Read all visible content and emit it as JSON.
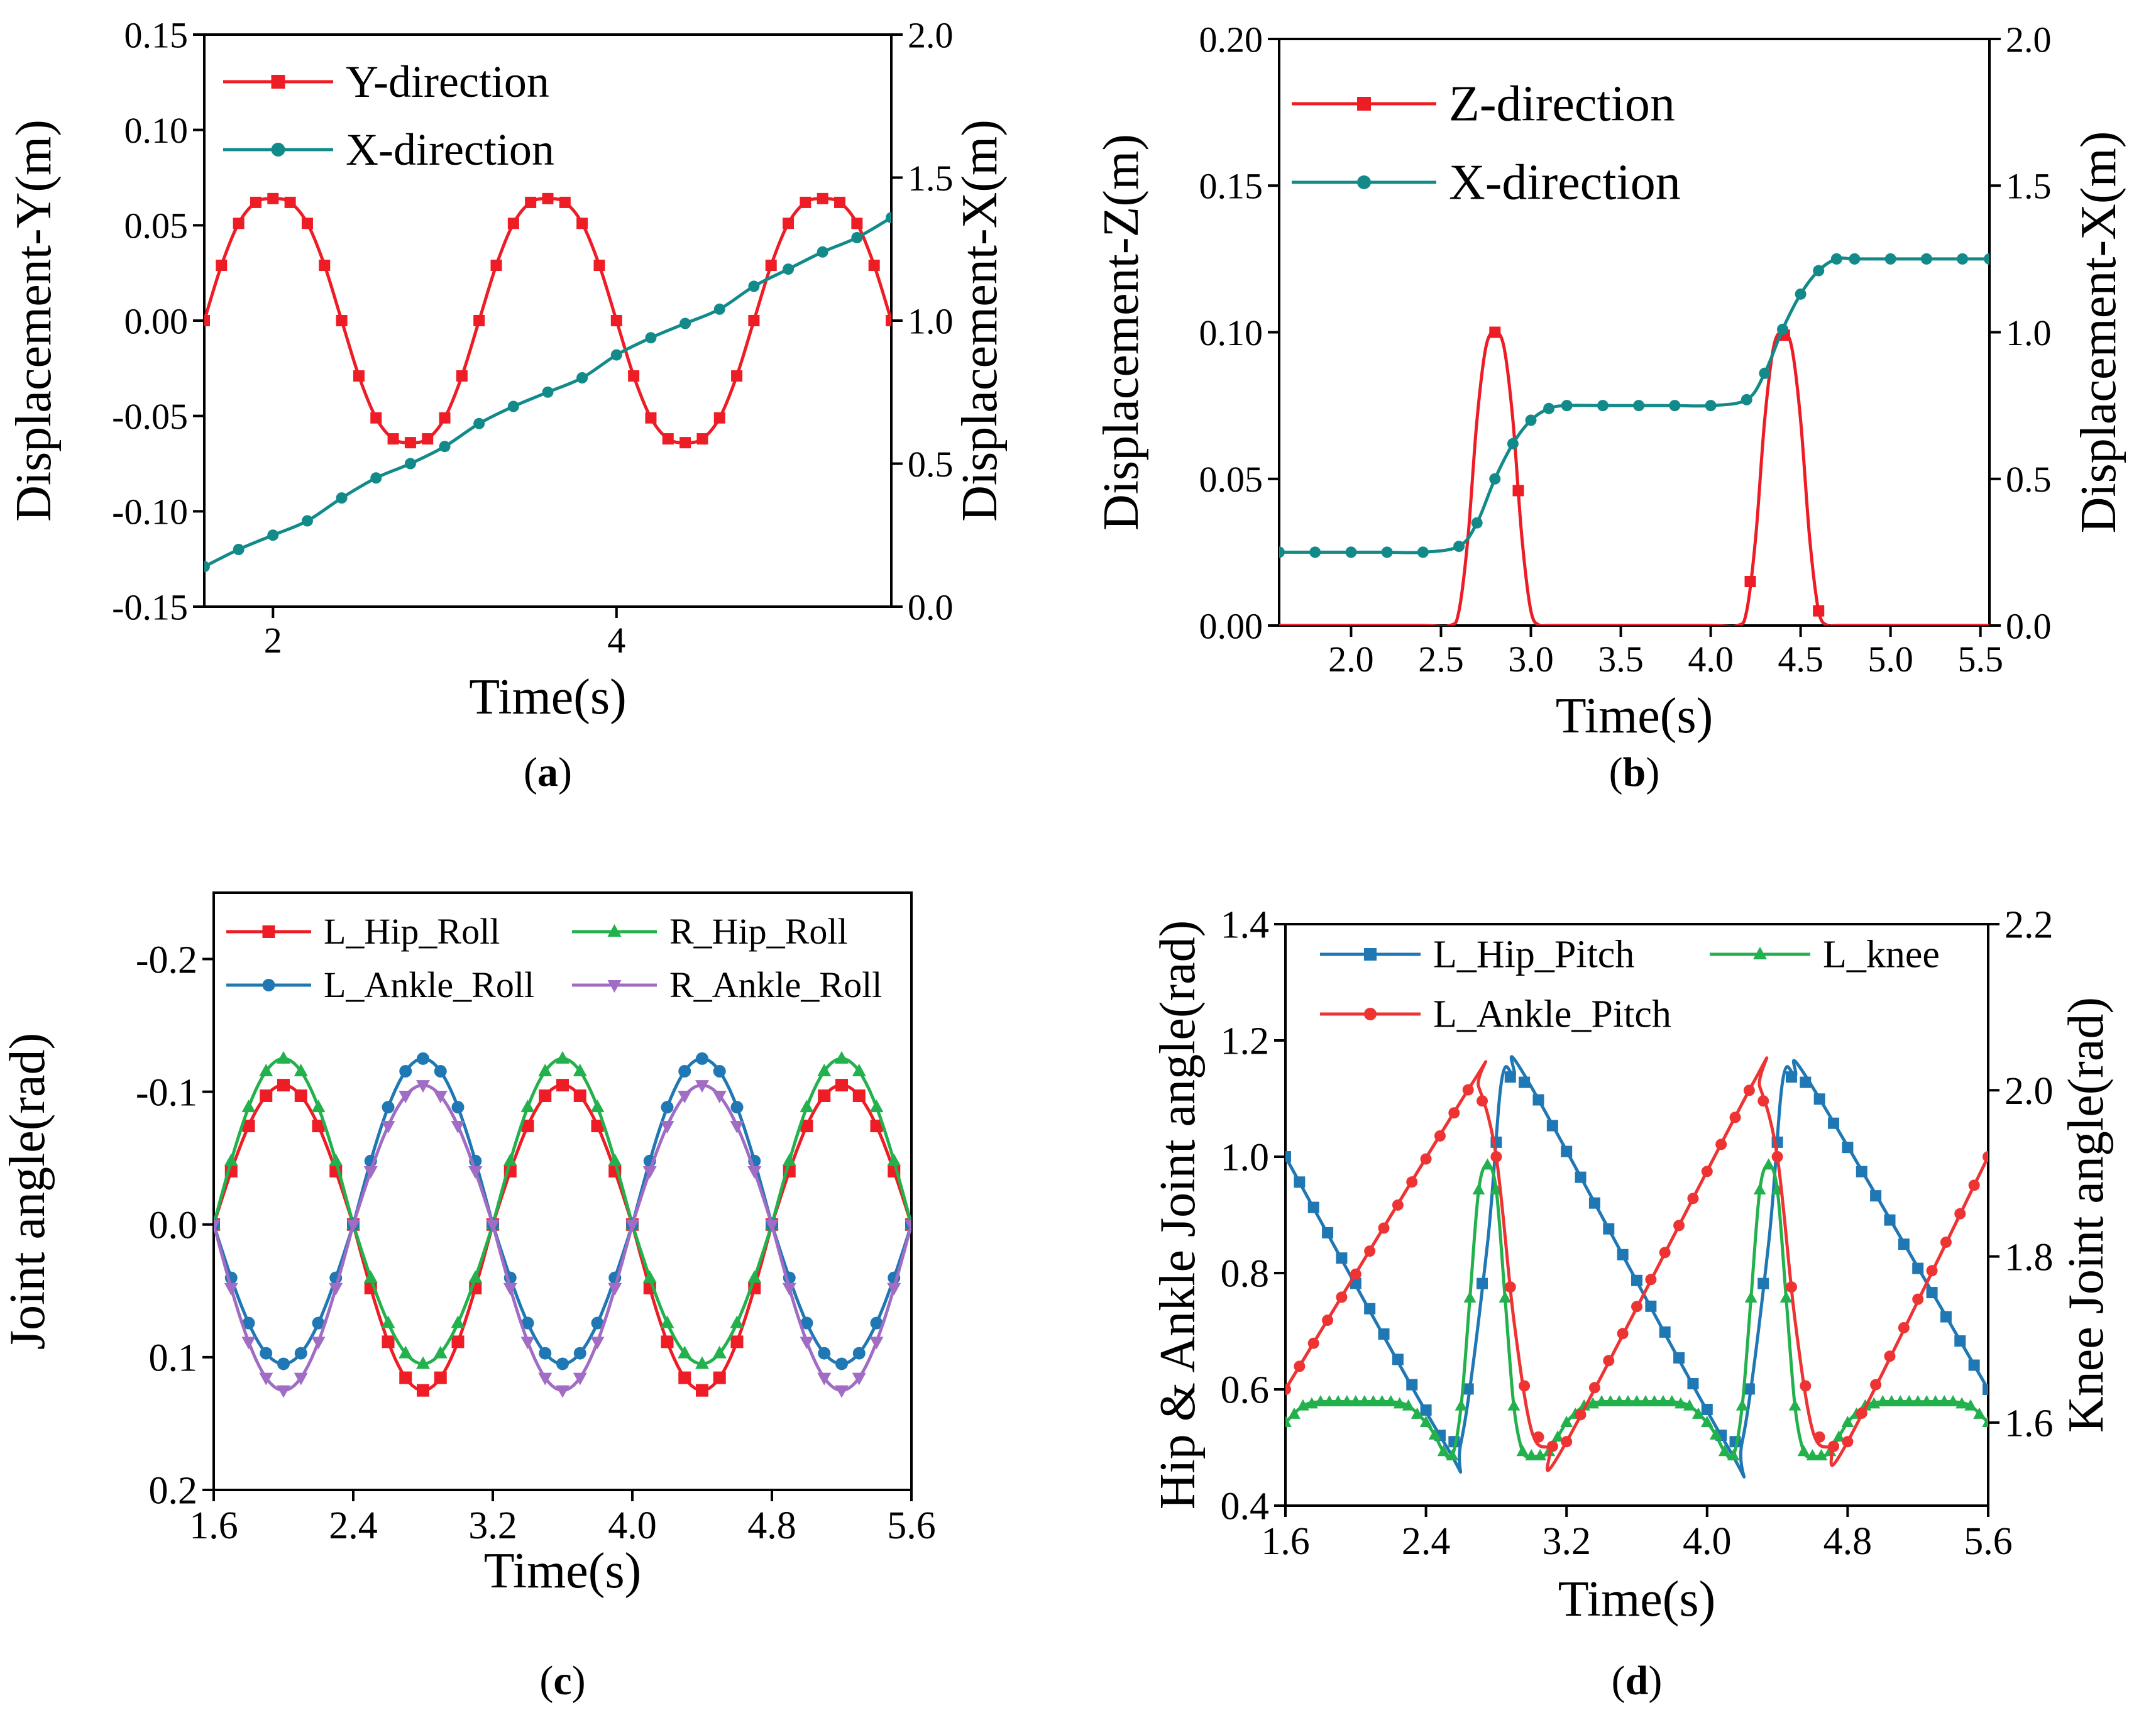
{
  "chart_data": [
    {
      "id": "a",
      "type": "line",
      "caption": "(a)",
      "caption_letter": "a",
      "xlabel": "Time(s)",
      "ylabel": "Displacement-Y(m)",
      "ylabel_right": "Displacement-X(m)",
      "xlim": [
        1.6,
        5.6
      ],
      "ylim": [
        -0.15,
        0.15
      ],
      "ylim_right": [
        0.0,
        2.0
      ],
      "xticks": [
        "2",
        "4"
      ],
      "xtick_values": [
        2,
        4
      ],
      "yticks": [
        "0.15",
        "0.10",
        "0.05",
        "0.00",
        "-0.05",
        "-0.10",
        "-0.15"
      ],
      "ytick_values": [
        0.15,
        0.1,
        0.05,
        0.0,
        -0.05,
        -0.1,
        -0.15
      ],
      "yticks_right": [
        "2.0",
        "1.5",
        "1.0",
        "0.5",
        "0.0"
      ],
      "ytick_right_values": [
        2.0,
        1.5,
        1.0,
        0.5,
        0.0
      ],
      "legend": {
        "position": "top-left"
      },
      "series": [
        {
          "name": "Y-direction",
          "axis": "left",
          "color": "#ee1c25",
          "marker": "square",
          "x": [
            1.6,
            1.7,
            1.8,
            1.9,
            2.0,
            2.1,
            2.2,
            2.3,
            2.4,
            2.5,
            2.6,
            2.7,
            2.8,
            2.9,
            3.0,
            3.1,
            3.2,
            3.3,
            3.4,
            3.5,
            3.6,
            3.7,
            3.8,
            3.9,
            4.0,
            4.1,
            4.2,
            4.3,
            4.4,
            4.5,
            4.6,
            4.7,
            4.8,
            4.9,
            5.0,
            5.1,
            5.2,
            5.3,
            5.4,
            5.5,
            5.6
          ],
          "y": [
            0.0,
            0.029,
            0.051,
            0.062,
            0.064,
            0.062,
            0.051,
            0.029,
            0.0,
            -0.029,
            -0.051,
            -0.062,
            -0.064,
            -0.062,
            -0.051,
            -0.029,
            0.0,
            0.029,
            0.051,
            0.062,
            0.064,
            0.062,
            0.051,
            0.029,
            0.0,
            -0.029,
            -0.051,
            -0.062,
            -0.064,
            -0.062,
            -0.051,
            -0.029,
            0.0,
            0.029,
            0.051,
            0.062,
            0.064,
            0.062,
            0.051,
            0.029,
            0.0
          ]
        },
        {
          "name": "X-direction",
          "axis": "right",
          "color": "#138a8a",
          "marker": "circle",
          "x": [
            1.6,
            1.8,
            2.0,
            2.2,
            2.4,
            2.6,
            2.8,
            3.0,
            3.2,
            3.4,
            3.6,
            3.8,
            4.0,
            4.2,
            4.4,
            4.6,
            4.8,
            5.0,
            5.2,
            5.4,
            5.6
          ],
          "y": [
            0.14,
            0.2,
            0.25,
            0.3,
            0.38,
            0.45,
            0.5,
            0.56,
            0.64,
            0.7,
            0.75,
            0.8,
            0.88,
            0.94,
            0.99,
            1.04,
            1.12,
            1.18,
            1.24,
            1.29,
            1.36
          ]
        }
      ]
    },
    {
      "id": "b",
      "type": "line",
      "caption": "(b)",
      "caption_letter": "b",
      "xlabel": "Time(s)",
      "ylabel": "Displacement-Z(m)",
      "ylabel_right": "Displacement-X(m)",
      "xlim": [
        1.6,
        5.55
      ],
      "ylim": [
        0.0,
        0.2
      ],
      "ylim_right": [
        0.0,
        2.0
      ],
      "xticks": [
        "2.0",
        "2.5",
        "3.0",
        "3.5",
        "4.0",
        "4.5",
        "5.0",
        "5.5"
      ],
      "xtick_values": [
        2.0,
        2.5,
        3.0,
        3.5,
        4.0,
        4.5,
        5.0,
        5.5
      ],
      "yticks": [
        "0.20",
        "0.15",
        "0.10",
        "0.05",
        "0.00"
      ],
      "ytick_values": [
        0.2,
        0.15,
        0.1,
        0.05,
        0.0
      ],
      "yticks_right": [
        "2.0",
        "1.5",
        "1.0",
        "0.5",
        "0.0"
      ],
      "ytick_right_values": [
        2.0,
        1.5,
        1.0,
        0.5,
        0.0
      ],
      "legend": {
        "position": "top-left"
      },
      "series": [
        {
          "name": "Z-direction",
          "axis": "left",
          "color": "#ee1c25",
          "marker": "square",
          "x": [
            1.6,
            2.0,
            2.4,
            2.55,
            2.6,
            2.65,
            2.7,
            2.75,
            2.8,
            2.85,
            2.9,
            2.95,
            3.0,
            3.05,
            3.1,
            3.5,
            4.0,
            4.15,
            4.2,
            4.25,
            4.3,
            4.35,
            4.4,
            4.45,
            4.5,
            4.55,
            4.6,
            4.65,
            4.7,
            5.0,
            5.55
          ],
          "y": [
            0,
            0,
            0,
            0,
            0.005,
            0.03,
            0.07,
            0.095,
            0.1,
            0.095,
            0.07,
            0.03,
            0.005,
            0,
            0,
            0,
            0,
            0,
            0.005,
            0.03,
            0.07,
            0.095,
            0.1,
            0.095,
            0.07,
            0.03,
            0.005,
            0,
            0,
            0,
            0
          ],
          "marker_x": [
            2.8,
            2.93,
            4.22,
            4.41,
            4.6
          ]
        },
        {
          "name": "X-direction",
          "axis": "right",
          "color": "#138a8a",
          "marker": "circle",
          "x": [
            1.6,
            1.8,
            2.0,
            2.2,
            2.4,
            2.6,
            2.7,
            2.8,
            2.9,
            3.0,
            3.1,
            3.2,
            3.4,
            3.6,
            3.8,
            4.0,
            4.2,
            4.3,
            4.4,
            4.5,
            4.6,
            4.7,
            4.8,
            5.0,
            5.2,
            5.4,
            5.55
          ],
          "y": [
            0.25,
            0.25,
            0.25,
            0.25,
            0.25,
            0.27,
            0.35,
            0.5,
            0.62,
            0.7,
            0.74,
            0.75,
            0.75,
            0.75,
            0.75,
            0.75,
            0.77,
            0.86,
            1.01,
            1.13,
            1.21,
            1.25,
            1.25,
            1.25,
            1.25,
            1.25,
            1.25
          ]
        }
      ]
    },
    {
      "id": "c",
      "type": "line",
      "caption": "(c)",
      "caption_letter": "c",
      "xlabel": "Time(s)",
      "ylabel": "Joint angle(rad)",
      "xlim": [
        1.6,
        5.6
      ],
      "ylim": [
        -0.25,
        0.2
      ],
      "y_inverted": true,
      "xticks": [
        "1.6",
        "2.4",
        "3.2",
        "4.0",
        "4.8",
        "5.6"
      ],
      "xtick_values": [
        1.6,
        2.4,
        3.2,
        4.0,
        4.8,
        5.6
      ],
      "yticks": [
        "-0.2",
        "-0.1",
        "0.0",
        "0.1",
        "0.2"
      ],
      "ytick_values": [
        -0.2,
        -0.1,
        0.0,
        0.1,
        0.2
      ],
      "legend": {
        "position": "top",
        "columns": 2
      },
      "series": [
        {
          "name": "L_Hip_Roll",
          "color": "#ee1c25",
          "marker": "square",
          "amp_neg": 0.105,
          "amp_pos": 0.125,
          "phase": 0
        },
        {
          "name": "R_Hip_Roll",
          "color": "#22b14c",
          "marker": "triangle-up",
          "amp_neg": 0.125,
          "amp_pos": 0.105,
          "phase": 0
        },
        {
          "name": "L_Ankle_Roll",
          "color": "#1f77b4",
          "marker": "circle",
          "amp_neg": 0.125,
          "amp_pos": 0.105,
          "phase": 1
        },
        {
          "name": "R_Ankle_Roll",
          "color": "#a06cc4",
          "marker": "triangle-down",
          "amp_neg": 0.105,
          "amp_pos": 0.125,
          "phase": 1
        }
      ],
      "period": 1.6,
      "x_step": 0.1
    },
    {
      "id": "d",
      "type": "line",
      "caption": "(d)",
      "caption_letter": "d",
      "xlabel": "Time(s)",
      "ylabel": "Hip & Ankle Joint angle(rad)",
      "ylabel_right": "Knee Joint angle(rad)",
      "xlim": [
        1.6,
        5.6
      ],
      "ylim": [
        0.4,
        1.4
      ],
      "ylim_right": [
        1.5,
        2.2
      ],
      "xticks": [
        "1.6",
        "2.4",
        "3.2",
        "4.0",
        "4.8",
        "5.6"
      ],
      "xtick_values": [
        1.6,
        2.4,
        3.2,
        4.0,
        4.8,
        5.6
      ],
      "yticks": [
        "1.4",
        "1.2",
        "1.0",
        "0.8",
        "0.6",
        "0.4"
      ],
      "ytick_values": [
        1.4,
        1.2,
        1.0,
        0.8,
        0.6,
        0.4
      ],
      "yticks_right": [
        "2.2",
        "2.0",
        "1.8",
        "1.6"
      ],
      "ytick_right_values": [
        2.2,
        2.0,
        1.8,
        1.6
      ],
      "legend": {
        "position": "top",
        "columns": 2
      },
      "series": [
        {
          "name": "L_Hip_Pitch",
          "axis": "left",
          "color": "#1f77b4",
          "marker": "square",
          "x": [
            1.6,
            2.5,
            2.6,
            2.75,
            2.83,
            2.9,
            3.0,
            4.1,
            4.2,
            4.35,
            4.43,
            4.5,
            4.6,
            5.6
          ],
          "y": [
            1.0,
            0.51,
            0.51,
            0.85,
            1.13,
            1.14,
            1.12,
            0.51,
            0.51,
            0.85,
            1.13,
            1.14,
            1.12,
            0.6
          ],
          "marker_step": 0.08
        },
        {
          "name": "L_knee",
          "axis": "right",
          "color": "#22b14c",
          "marker": "triangle-up",
          "x": [
            1.6,
            1.7,
            1.8,
            2.0,
            2.2,
            2.3,
            2.4,
            2.45,
            2.5,
            2.55,
            2.6,
            2.65,
            2.7,
            2.75,
            2.8,
            2.85,
            2.9,
            2.95,
            3.0,
            3.05,
            3.1,
            3.2,
            3.3,
            3.4,
            3.6,
            3.8,
            3.9,
            4.0,
            4.05,
            4.1,
            4.15,
            4.2,
            4.25,
            4.3,
            4.35,
            4.4,
            4.45,
            4.5,
            4.55,
            4.6,
            4.65,
            4.7,
            4.8,
            4.9,
            5.0,
            5.2,
            5.4,
            5.5,
            5.6
          ],
          "y": [
            1.6,
            1.62,
            1.625,
            1.625,
            1.625,
            1.62,
            1.6,
            1.585,
            1.565,
            1.56,
            1.62,
            1.75,
            1.88,
            1.91,
            1.88,
            1.75,
            1.62,
            1.565,
            1.56,
            1.56,
            1.565,
            1.6,
            1.62,
            1.625,
            1.625,
            1.625,
            1.62,
            1.6,
            1.585,
            1.565,
            1.56,
            1.62,
            1.75,
            1.88,
            1.91,
            1.88,
            1.75,
            1.62,
            1.565,
            1.56,
            1.56,
            1.565,
            1.6,
            1.62,
            1.625,
            1.625,
            1.625,
            1.62,
            1.6
          ],
          "marker_step": 0.05
        },
        {
          "name": "L_Ankle_Pitch",
          "axis": "left",
          "color": "#ee3333",
          "marker": "circle",
          "x": [
            1.6,
            2.65,
            2.7,
            2.8,
            2.9,
            3.0,
            3.1,
            3.2,
            4.25,
            4.3,
            4.4,
            4.5,
            4.6,
            4.7,
            4.8,
            5.6
          ],
          "y": [
            0.6,
            1.12,
            1.12,
            1.0,
            0.72,
            0.53,
            0.5,
            0.51,
            1.12,
            1.12,
            1.0,
            0.72,
            0.53,
            0.5,
            0.51,
            1.0
          ],
          "marker_step": 0.08
        }
      ]
    }
  ]
}
